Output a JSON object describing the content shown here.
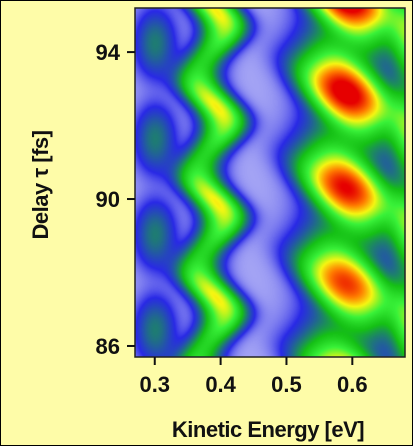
{
  "chart_data": {
    "type": "heatmap",
    "title": "",
    "xlabel": "Kinetic Energy [eV]",
    "ylabel": "Delay τ [fs]",
    "xlim": [
      0.27,
      0.68
    ],
    "ylim": [
      85.7,
      95.2
    ],
    "xticks": [
      0.3,
      0.4,
      0.5,
      0.6
    ],
    "xtick_labels": [
      "0.3",
      "0.4",
      "0.5",
      "0.6"
    ],
    "yticks": [
      86,
      90,
      94
    ],
    "ytick_labels": [
      "86",
      "90",
      "94"
    ],
    "colormap": [
      "#ffffff",
      "#2929e6",
      "#15c015",
      "#39f239",
      "#f6f612",
      "#ff7a00",
      "#e60000"
    ],
    "bands": [
      {
        "energy": 0.385,
        "peak_intensity": 0.62
      },
      {
        "energy": 0.59,
        "peak_intensity": 1.0
      }
    ],
    "oscillation_period_fs": 2.6,
    "legend": "none",
    "grid": false
  }
}
